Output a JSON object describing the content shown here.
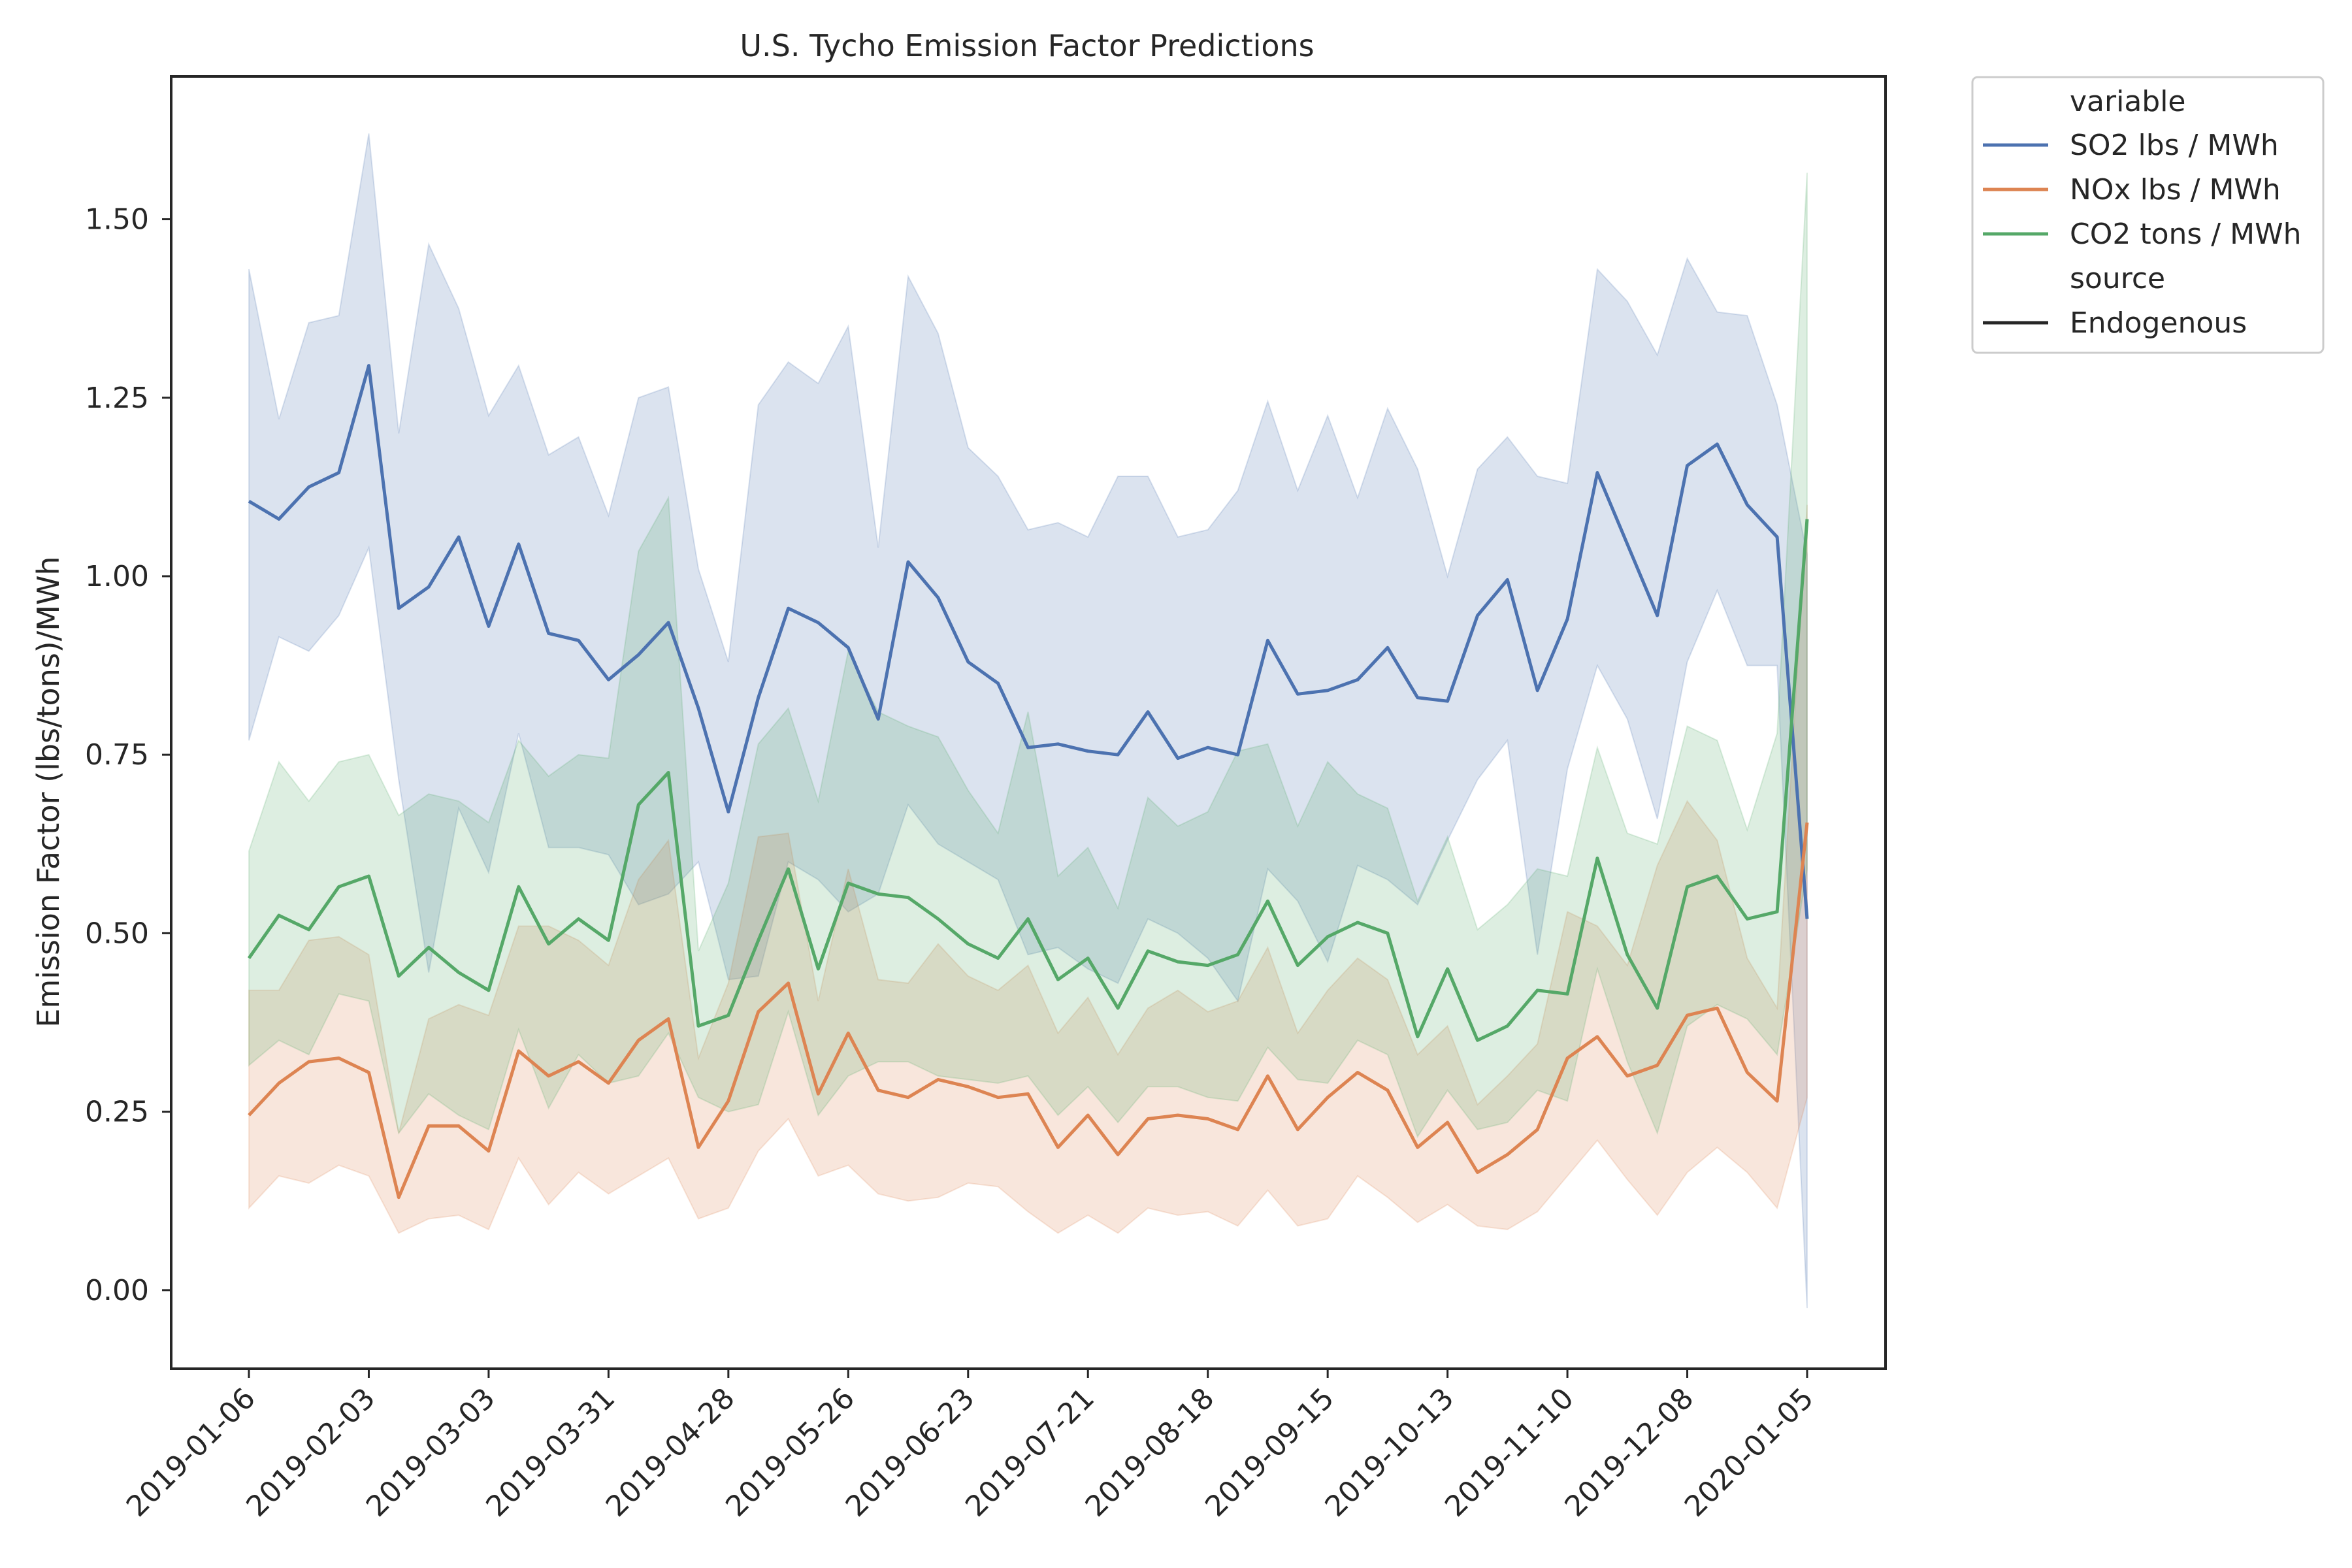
{
  "chart_data": {
    "type": "line",
    "title": "U.S. Tycho Emission Factor Predictions",
    "xlabel": "",
    "ylabel": "Emission Factor (lbs/tons)/MWh",
    "ylim": [
      -0.11,
      1.7
    ],
    "yticks": [
      0.0,
      0.25,
      0.5,
      0.75,
      1.0,
      1.25,
      1.5
    ],
    "ytick_labels": [
      "0.00",
      "0.25",
      "0.50",
      "0.75",
      "1.00",
      "1.25",
      "1.50"
    ],
    "xtick_labels": [
      "2019-01-06",
      "2019-02-03",
      "2019-03-03",
      "2019-03-31",
      "2019-04-28",
      "2019-05-26",
      "2019-06-23",
      "2019-07-21",
      "2019-08-18",
      "2019-09-15",
      "2019-10-13",
      "2019-11-10",
      "2019-12-08",
      "2020-01-05"
    ],
    "grid": false,
    "legend_placement": "outside top-right",
    "legend": {
      "hue_title": "variable",
      "style_title": "source",
      "style_entry": "Endogenous"
    },
    "x": [
      "2019-01-06",
      "2019-01-13",
      "2019-01-20",
      "2019-01-27",
      "2019-02-03",
      "2019-02-10",
      "2019-02-17",
      "2019-02-24",
      "2019-03-03",
      "2019-03-10",
      "2019-03-17",
      "2019-03-24",
      "2019-03-31",
      "2019-04-07",
      "2019-04-14",
      "2019-04-21",
      "2019-04-28",
      "2019-05-05",
      "2019-05-12",
      "2019-05-19",
      "2019-05-26",
      "2019-06-02",
      "2019-06-09",
      "2019-06-16",
      "2019-06-23",
      "2019-06-30",
      "2019-07-07",
      "2019-07-14",
      "2019-07-21",
      "2019-07-28",
      "2019-08-04",
      "2019-08-11",
      "2019-08-18",
      "2019-08-25",
      "2019-09-01",
      "2019-09-08",
      "2019-09-15",
      "2019-09-22",
      "2019-09-29",
      "2019-10-06",
      "2019-10-13",
      "2019-10-20",
      "2019-10-27",
      "2019-11-03",
      "2019-11-10",
      "2019-11-17",
      "2019-11-24",
      "2019-12-01",
      "2019-12-08",
      "2019-12-15",
      "2019-12-22",
      "2019-12-29",
      "2020-01-05"
    ],
    "series": [
      {
        "name": "SO2 lbs / MWh",
        "color": "#4c72b0",
        "values": [
          1.105,
          1.08,
          1.125,
          1.145,
          1.295,
          0.955,
          0.985,
          1.055,
          0.93,
          1.045,
          0.92,
          0.91,
          0.855,
          0.89,
          0.935,
          0.815,
          0.67,
          0.83,
          0.955,
          0.935,
          0.9,
          0.8,
          1.02,
          0.97,
          0.88,
          0.85,
          0.76,
          0.765,
          0.755,
          0.75,
          0.81,
          0.745,
          0.76,
          0.75,
          0.91,
          0.835,
          0.84,
          0.855,
          0.9,
          0.83,
          0.825,
          0.945,
          0.995,
          0.84,
          0.94,
          1.145,
          1.045,
          0.945,
          1.155,
          1.185,
          1.1,
          1.055,
          0.52
        ],
        "upper": [
          1.43,
          1.22,
          1.355,
          1.365,
          1.62,
          1.2,
          1.465,
          1.375,
          1.225,
          1.295,
          1.17,
          1.195,
          1.085,
          1.25,
          1.265,
          1.01,
          0.88,
          1.24,
          1.3,
          1.27,
          1.35,
          1.04,
          1.42,
          1.34,
          1.18,
          1.14,
          1.065,
          1.075,
          1.055,
          1.14,
          1.14,
          1.055,
          1.065,
          1.12,
          1.245,
          1.12,
          1.225,
          1.11,
          1.235,
          1.15,
          1.0,
          1.15,
          1.195,
          1.14,
          1.13,
          1.43,
          1.385,
          1.31,
          1.445,
          1.37,
          1.365,
          1.24,
          1.03
        ],
        "lower": [
          0.77,
          0.915,
          0.895,
          0.945,
          1.04,
          0.715,
          0.445,
          0.675,
          0.585,
          0.78,
          0.62,
          0.62,
          0.61,
          0.54,
          0.555,
          0.6,
          0.435,
          0.44,
          0.6,
          0.575,
          0.53,
          0.555,
          0.68,
          0.625,
          0.6,
          0.575,
          0.47,
          0.48,
          0.45,
          0.43,
          0.52,
          0.5,
          0.465,
          0.405,
          0.59,
          0.545,
          0.46,
          0.595,
          0.575,
          0.54,
          0.63,
          0.715,
          0.77,
          0.47,
          0.73,
          0.875,
          0.8,
          0.66,
          0.88,
          0.98,
          0.875,
          0.875,
          -0.025
        ]
      },
      {
        "name": "NOx lbs / MWh",
        "color": "#dd8452",
        "values": [
          0.245,
          0.29,
          0.32,
          0.325,
          0.305,
          0.13,
          0.23,
          0.23,
          0.195,
          0.335,
          0.3,
          0.32,
          0.29,
          0.35,
          0.38,
          0.2,
          0.265,
          0.39,
          0.43,
          0.275,
          0.36,
          0.28,
          0.27,
          0.295,
          0.285,
          0.27,
          0.275,
          0.2,
          0.245,
          0.19,
          0.24,
          0.245,
          0.24,
          0.225,
          0.3,
          0.225,
          0.27,
          0.305,
          0.28,
          0.2,
          0.235,
          0.165,
          0.19,
          0.225,
          0.325,
          0.355,
          0.3,
          0.315,
          0.385,
          0.395,
          0.305,
          0.265,
          0.655
        ],
        "upper": [
          0.42,
          0.42,
          0.49,
          0.495,
          0.47,
          0.22,
          0.38,
          0.4,
          0.385,
          0.51,
          0.51,
          0.49,
          0.455,
          0.575,
          0.63,
          0.325,
          0.43,
          0.635,
          0.64,
          0.405,
          0.59,
          0.435,
          0.43,
          0.485,
          0.44,
          0.42,
          0.455,
          0.36,
          0.41,
          0.33,
          0.395,
          0.42,
          0.39,
          0.405,
          0.48,
          0.36,
          0.42,
          0.465,
          0.435,
          0.33,
          0.37,
          0.26,
          0.3,
          0.345,
          0.53,
          0.51,
          0.455,
          0.595,
          0.685,
          0.63,
          0.465,
          0.395,
          1.1
        ],
        "lower": [
          0.115,
          0.16,
          0.15,
          0.175,
          0.16,
          0.08,
          0.1,
          0.105,
          0.085,
          0.185,
          0.12,
          0.165,
          0.135,
          0.16,
          0.185,
          0.1,
          0.115,
          0.195,
          0.24,
          0.16,
          0.175,
          0.135,
          0.125,
          0.13,
          0.15,
          0.145,
          0.11,
          0.08,
          0.105,
          0.08,
          0.115,
          0.105,
          0.11,
          0.09,
          0.14,
          0.09,
          0.1,
          0.16,
          0.13,
          0.095,
          0.12,
          0.09,
          0.085,
          0.11,
          0.16,
          0.21,
          0.155,
          0.105,
          0.165,
          0.2,
          0.165,
          0.115,
          0.27
        ]
      },
      {
        "name": "CO2 tons / MWh",
        "color": "#55a868",
        "values": [
          0.465,
          0.525,
          0.505,
          0.565,
          0.58,
          0.44,
          0.48,
          0.445,
          0.42,
          0.565,
          0.485,
          0.52,
          0.49,
          0.68,
          0.725,
          0.37,
          0.385,
          0.49,
          0.59,
          0.45,
          0.57,
          0.555,
          0.55,
          0.52,
          0.485,
          0.465,
          0.52,
          0.435,
          0.465,
          0.395,
          0.475,
          0.46,
          0.455,
          0.47,
          0.545,
          0.455,
          0.495,
          0.515,
          0.5,
          0.355,
          0.45,
          0.35,
          0.37,
          0.42,
          0.415,
          0.605,
          0.47,
          0.395,
          0.565,
          0.58,
          0.52,
          0.53,
          1.08
        ],
        "upper": [
          0.615,
          0.74,
          0.685,
          0.74,
          0.75,
          0.665,
          0.695,
          0.685,
          0.655,
          0.77,
          0.72,
          0.75,
          0.745,
          1.035,
          1.11,
          0.475,
          0.57,
          0.765,
          0.815,
          0.685,
          0.895,
          0.81,
          0.79,
          0.775,
          0.7,
          0.64,
          0.81,
          0.58,
          0.62,
          0.535,
          0.69,
          0.65,
          0.67,
          0.755,
          0.765,
          0.65,
          0.74,
          0.695,
          0.675,
          0.545,
          0.635,
          0.505,
          0.54,
          0.59,
          0.58,
          0.76,
          0.64,
          0.625,
          0.79,
          0.77,
          0.645,
          0.78,
          1.565
        ],
        "lower": [
          0.315,
          0.35,
          0.33,
          0.415,
          0.405,
          0.22,
          0.275,
          0.245,
          0.225,
          0.365,
          0.255,
          0.33,
          0.29,
          0.3,
          0.36,
          0.27,
          0.25,
          0.26,
          0.39,
          0.245,
          0.3,
          0.32,
          0.32,
          0.3,
          0.295,
          0.29,
          0.3,
          0.245,
          0.285,
          0.235,
          0.285,
          0.285,
          0.27,
          0.265,
          0.34,
          0.295,
          0.29,
          0.35,
          0.33,
          0.215,
          0.28,
          0.225,
          0.235,
          0.28,
          0.265,
          0.45,
          0.32,
          0.22,
          0.37,
          0.4,
          0.38,
          0.33,
          0.59
        ]
      }
    ]
  }
}
